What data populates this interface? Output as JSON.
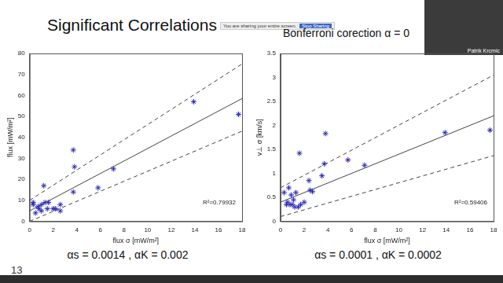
{
  "slide": {
    "title": "Significant Correlations",
    "subtitle": "Bonferroni corection α = 0",
    "page": "13",
    "banner": {
      "text": "You are sharing your entire screen.",
      "button": "Stop Sharing"
    },
    "presenter": "Patrik Krcmic"
  },
  "chart_data": [
    {
      "type": "scatter",
      "x_label": "flux σ [mW/m²]",
      "y_label": "flux [mW/m²]",
      "xlim": [
        0,
        18
      ],
      "xticks": [
        0,
        2,
        4,
        6,
        8,
        10,
        12,
        14,
        16,
        18
      ],
      "ylim": [
        0,
        80
      ],
      "yticks": [
        0,
        10,
        20,
        30,
        40,
        50,
        60,
        70,
        80
      ],
      "grid": false,
      "annotations": [
        "R²=0.79932"
      ],
      "footnote": "αs = 0.0014 , αK = 0.002",
      "series": [
        {
          "type": "scatter",
          "color": "#2b2bb5",
          "marker": "star",
          "x": [
            0.3,
            0.3,
            0.5,
            0.7,
            0.8,
            1.0,
            1.0,
            1.2,
            1.3,
            1.5,
            1.6,
            2.0,
            2.2,
            2.6,
            2.6,
            3.7,
            3.8,
            3.7,
            5.8,
            7.1,
            13.9,
            17.7
          ],
          "values": [
            8,
            9,
            4,
            7,
            6,
            8,
            5,
            17,
            9,
            6,
            9,
            6,
            6,
            8,
            5,
            34,
            26,
            14,
            16,
            25,
            57,
            51
          ]
        },
        {
          "type": "line",
          "color": "#444444",
          "line_style": "solid",
          "x": [
            0,
            18
          ],
          "values": [
            5,
            58.5
          ]
        },
        {
          "type": "line",
          "color": "#444444",
          "line_style": "dashed",
          "x": [
            0,
            18
          ],
          "values": [
            10,
            75
          ]
        },
        {
          "type": "line",
          "color": "#444444",
          "line_style": "dashed",
          "x": [
            0,
            18
          ],
          "values": [
            0,
            43
          ]
        }
      ]
    },
    {
      "type": "scatter",
      "x_label": "flux σ [mW/m²]",
      "y_label": "v⊥ σ [km/s]",
      "xlim": [
        0,
        18
      ],
      "xticks": [
        0,
        2,
        4,
        6,
        8,
        10,
        12,
        14,
        16,
        18
      ],
      "ylim": [
        0,
        3.5
      ],
      "yticks": [
        0,
        0.5,
        1,
        1.5,
        2,
        2.5,
        3,
        3.5
      ],
      "grid": false,
      "annotations": [
        "R²=0.59406"
      ],
      "footnote": "αs = 0.0001 , αK = 0.0002",
      "series": [
        {
          "type": "scatter",
          "color": "#2b2bb5",
          "marker": "star",
          "x": [
            0.3,
            0.5,
            0.6,
            0.7,
            0.8,
            0.9,
            1.0,
            1.1,
            1.2,
            1.3,
            1.5,
            1.6,
            1.7,
            2.0,
            2.4,
            2.5,
            2.7,
            3.5,
            3.7,
            3.8,
            5.7,
            7.1,
            13.9,
            17.7
          ],
          "values": [
            0.6,
            0.35,
            0.4,
            0.7,
            0.35,
            0.55,
            0.35,
            0.45,
            0.3,
            0.6,
            0.3,
            1.42,
            0.35,
            0.4,
            0.85,
            0.65,
            0.62,
            0.95,
            1.2,
            1.83,
            1.28,
            1.17,
            1.85,
            1.9
          ]
        },
        {
          "type": "line",
          "color": "#444444",
          "line_style": "solid",
          "x": [
            0,
            18
          ],
          "values": [
            0.4,
            2.2
          ]
        },
        {
          "type": "line",
          "color": "#444444",
          "line_style": "dashed",
          "x": [
            0,
            18
          ],
          "values": [
            0.7,
            3.05
          ]
        },
        {
          "type": "line",
          "color": "#444444",
          "line_style": "dashed",
          "x": [
            0,
            18
          ],
          "values": [
            0.1,
            1.37
          ]
        }
      ]
    }
  ]
}
